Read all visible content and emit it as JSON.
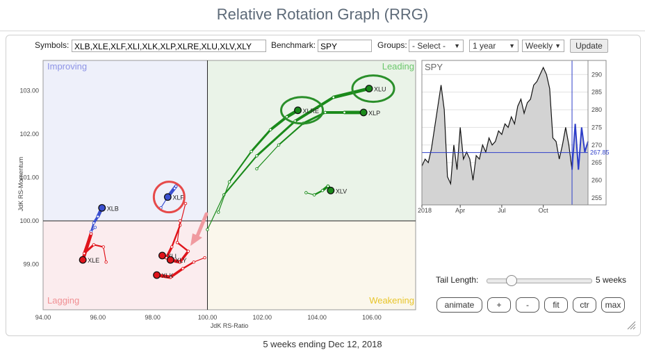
{
  "page": {
    "title": "Relative Rotation Graph (RRG)",
    "footer": "5 weeks ending Dec 12, 2018"
  },
  "controls": {
    "symbols_label": "Symbols:",
    "symbols_value": "XLB,XLE,XLF,XLI,XLK,XLP,XLRE,XLU,XLV,XLY",
    "benchmark_label": "Benchmark:",
    "benchmark_value": "SPY",
    "groups_label": "Groups:",
    "groups_value": "- Select -",
    "period_value": "1 year",
    "interval_value": "Weekly",
    "update_label": "Update"
  },
  "quadrants": {
    "improving": "Improving",
    "leading": "Leading",
    "lagging": "Lagging",
    "weakening": "Weakening"
  },
  "colors": {
    "leading": "#1a8a1a",
    "improving": "#3a4fd0",
    "lagging": "#e0141b",
    "weakening": "#e8c52a"
  },
  "chart_data": {
    "type": "scatter",
    "title": "Relative Rotation Graph",
    "xlabel": "JdK RS-Ratio",
    "ylabel": "JdK RS-Momentum",
    "xlim": [
      94,
      107.6
    ],
    "ylim": [
      97.95,
      103.7
    ],
    "xticks": [
      "94.00",
      "96.00",
      "98.00",
      "100.00",
      "102.00",
      "104.00",
      "106.00"
    ],
    "yticks": [
      "99.00",
      "100.00",
      "101.00",
      "102.00",
      "103.00"
    ],
    "series": [
      {
        "name": "XLU",
        "quadrant": "leading",
        "points": [
          [
            100.0,
            99.8
          ],
          [
            100.6,
            100.6
          ],
          [
            101.8,
            101.5
          ],
          [
            103.2,
            102.3
          ],
          [
            104.6,
            102.85
          ],
          [
            105.9,
            103.05
          ]
        ]
      },
      {
        "name": "XLRE",
        "quadrant": "leading",
        "points": [
          [
            100.4,
            100.2
          ],
          [
            100.8,
            100.9
          ],
          [
            101.6,
            101.6
          ],
          [
            102.3,
            102.1
          ],
          [
            102.9,
            102.4
          ],
          [
            103.3,
            102.55
          ]
        ]
      },
      {
        "name": "XLP",
        "quadrant": "leading",
        "points": [
          [
            101.8,
            101.2
          ],
          [
            102.6,
            101.75
          ],
          [
            103.5,
            102.25
          ],
          [
            104.3,
            102.5
          ],
          [
            105.0,
            102.5
          ],
          [
            105.7,
            102.5
          ]
        ]
      },
      {
        "name": "XLV",
        "quadrant": "leading",
        "points": [
          [
            103.6,
            100.65
          ],
          [
            103.9,
            100.6
          ],
          [
            104.2,
            100.7
          ],
          [
            104.4,
            100.8
          ],
          [
            104.5,
            100.7
          ]
        ]
      },
      {
        "name": "XLF",
        "quadrant": "improving",
        "points": [
          [
            98.3,
            100.3
          ],
          [
            98.5,
            100.5
          ],
          [
            98.8,
            100.75
          ],
          [
            98.85,
            100.8
          ],
          [
            98.55,
            100.55
          ]
        ]
      },
      {
        "name": "XLB",
        "quadrant": "improving",
        "points": [
          [
            95.9,
            99.85
          ],
          [
            95.75,
            99.75
          ],
          [
            95.85,
            99.95
          ],
          [
            96.0,
            100.1
          ],
          [
            96.15,
            100.3
          ]
        ]
      },
      {
        "name": "XLE",
        "quadrant": "lagging",
        "points": [
          [
            96.3,
            99.05
          ],
          [
            96.2,
            99.4
          ],
          [
            95.85,
            99.45
          ],
          [
            95.5,
            99.25
          ],
          [
            95.75,
            99.7
          ],
          [
            95.45,
            99.1
          ]
        ]
      },
      {
        "name": "XLI",
        "quadrant": "lagging",
        "points": [
          [
            99.2,
            100.4
          ],
          [
            99.0,
            99.9
          ],
          [
            98.7,
            99.4
          ],
          [
            98.5,
            99.15
          ],
          [
            98.35,
            99.2
          ]
        ]
      },
      {
        "name": "XLY",
        "quadrant": "lagging",
        "points": [
          [
            99.0,
            100.0
          ],
          [
            98.9,
            99.5
          ],
          [
            99.3,
            99.3
          ],
          [
            99.0,
            99.05
          ],
          [
            98.65,
            99.1
          ]
        ]
      },
      {
        "name": "XLK",
        "quadrant": "lagging",
        "points": [
          [
            99.9,
            99.15
          ],
          [
            99.5,
            99.05
          ],
          [
            99.1,
            98.9
          ],
          [
            98.65,
            98.7
          ],
          [
            98.15,
            98.75
          ]
        ]
      }
    ],
    "highlighted": [
      "XLU",
      "XLRE",
      "XLF"
    ]
  },
  "benchmark_chart": {
    "symbol": "SPY",
    "last_value": "267.85",
    "last_value_num": 267.85,
    "ylim": [
      253,
      294
    ],
    "yticks": [
      "290",
      "285",
      "280",
      "275",
      "270",
      "265",
      "260",
      "255"
    ],
    "xticks": [
      "2018",
      "Apr",
      "Jul",
      "Oct"
    ],
    "prices": [
      264,
      266,
      265,
      269,
      275,
      281,
      287,
      280,
      261,
      259,
      270,
      263,
      275,
      266,
      268,
      266,
      260,
      267,
      266,
      270,
      268,
      272,
      270,
      271,
      274,
      273,
      276,
      275,
      278,
      276,
      281,
      283,
      279,
      282,
      283,
      287,
      288,
      290,
      292,
      290,
      286,
      272,
      271,
      266,
      270,
      275,
      270,
      263,
      276,
      263,
      275,
      268,
      271
    ],
    "weeks_highlighted": 5
  },
  "tail": {
    "label": "Tail Length:",
    "value_label": "5 weeks",
    "weeks": 5,
    "max_weeks": 30
  },
  "buttons": {
    "animate": "animate",
    "plus": "+",
    "minus": "-",
    "fit": "fit",
    "center": "ctr",
    "max": "max"
  }
}
